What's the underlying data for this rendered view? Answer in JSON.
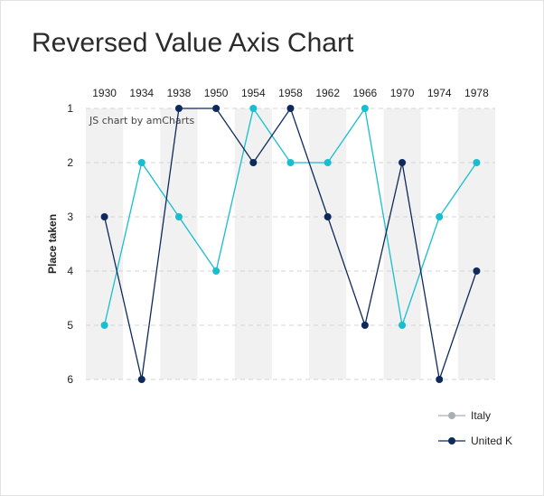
{
  "title": "Reversed Value Axis Chart",
  "credit": "JS chart by amCharts",
  "chart_data": {
    "type": "line",
    "x": [
      "1930",
      "1934",
      "1938",
      "1950",
      "1954",
      "1958",
      "1962",
      "1966",
      "1970",
      "1974",
      "1978"
    ],
    "ylabel": "Place taken",
    "xlabel": "",
    "ylim": [
      1,
      6
    ],
    "y_reversed": true,
    "y_ticks": [
      1,
      2,
      3,
      4,
      5,
      6
    ],
    "x_axis_position": "top",
    "grid": true,
    "legend_position": "bottom-right",
    "series": [
      {
        "name": "Italy",
        "color": "#17becf",
        "legend_color": "#a8b0b2",
        "values": [
          5,
          2,
          3,
          4,
          1,
          2,
          2,
          1,
          5,
          3,
          2
        ]
      },
      {
        "name": "United K",
        "color": "#0e2a5c",
        "legend_color": "#0e2a5c",
        "values": [
          3,
          6,
          1,
          1,
          2,
          1,
          3,
          5,
          2,
          6,
          4
        ]
      }
    ]
  }
}
